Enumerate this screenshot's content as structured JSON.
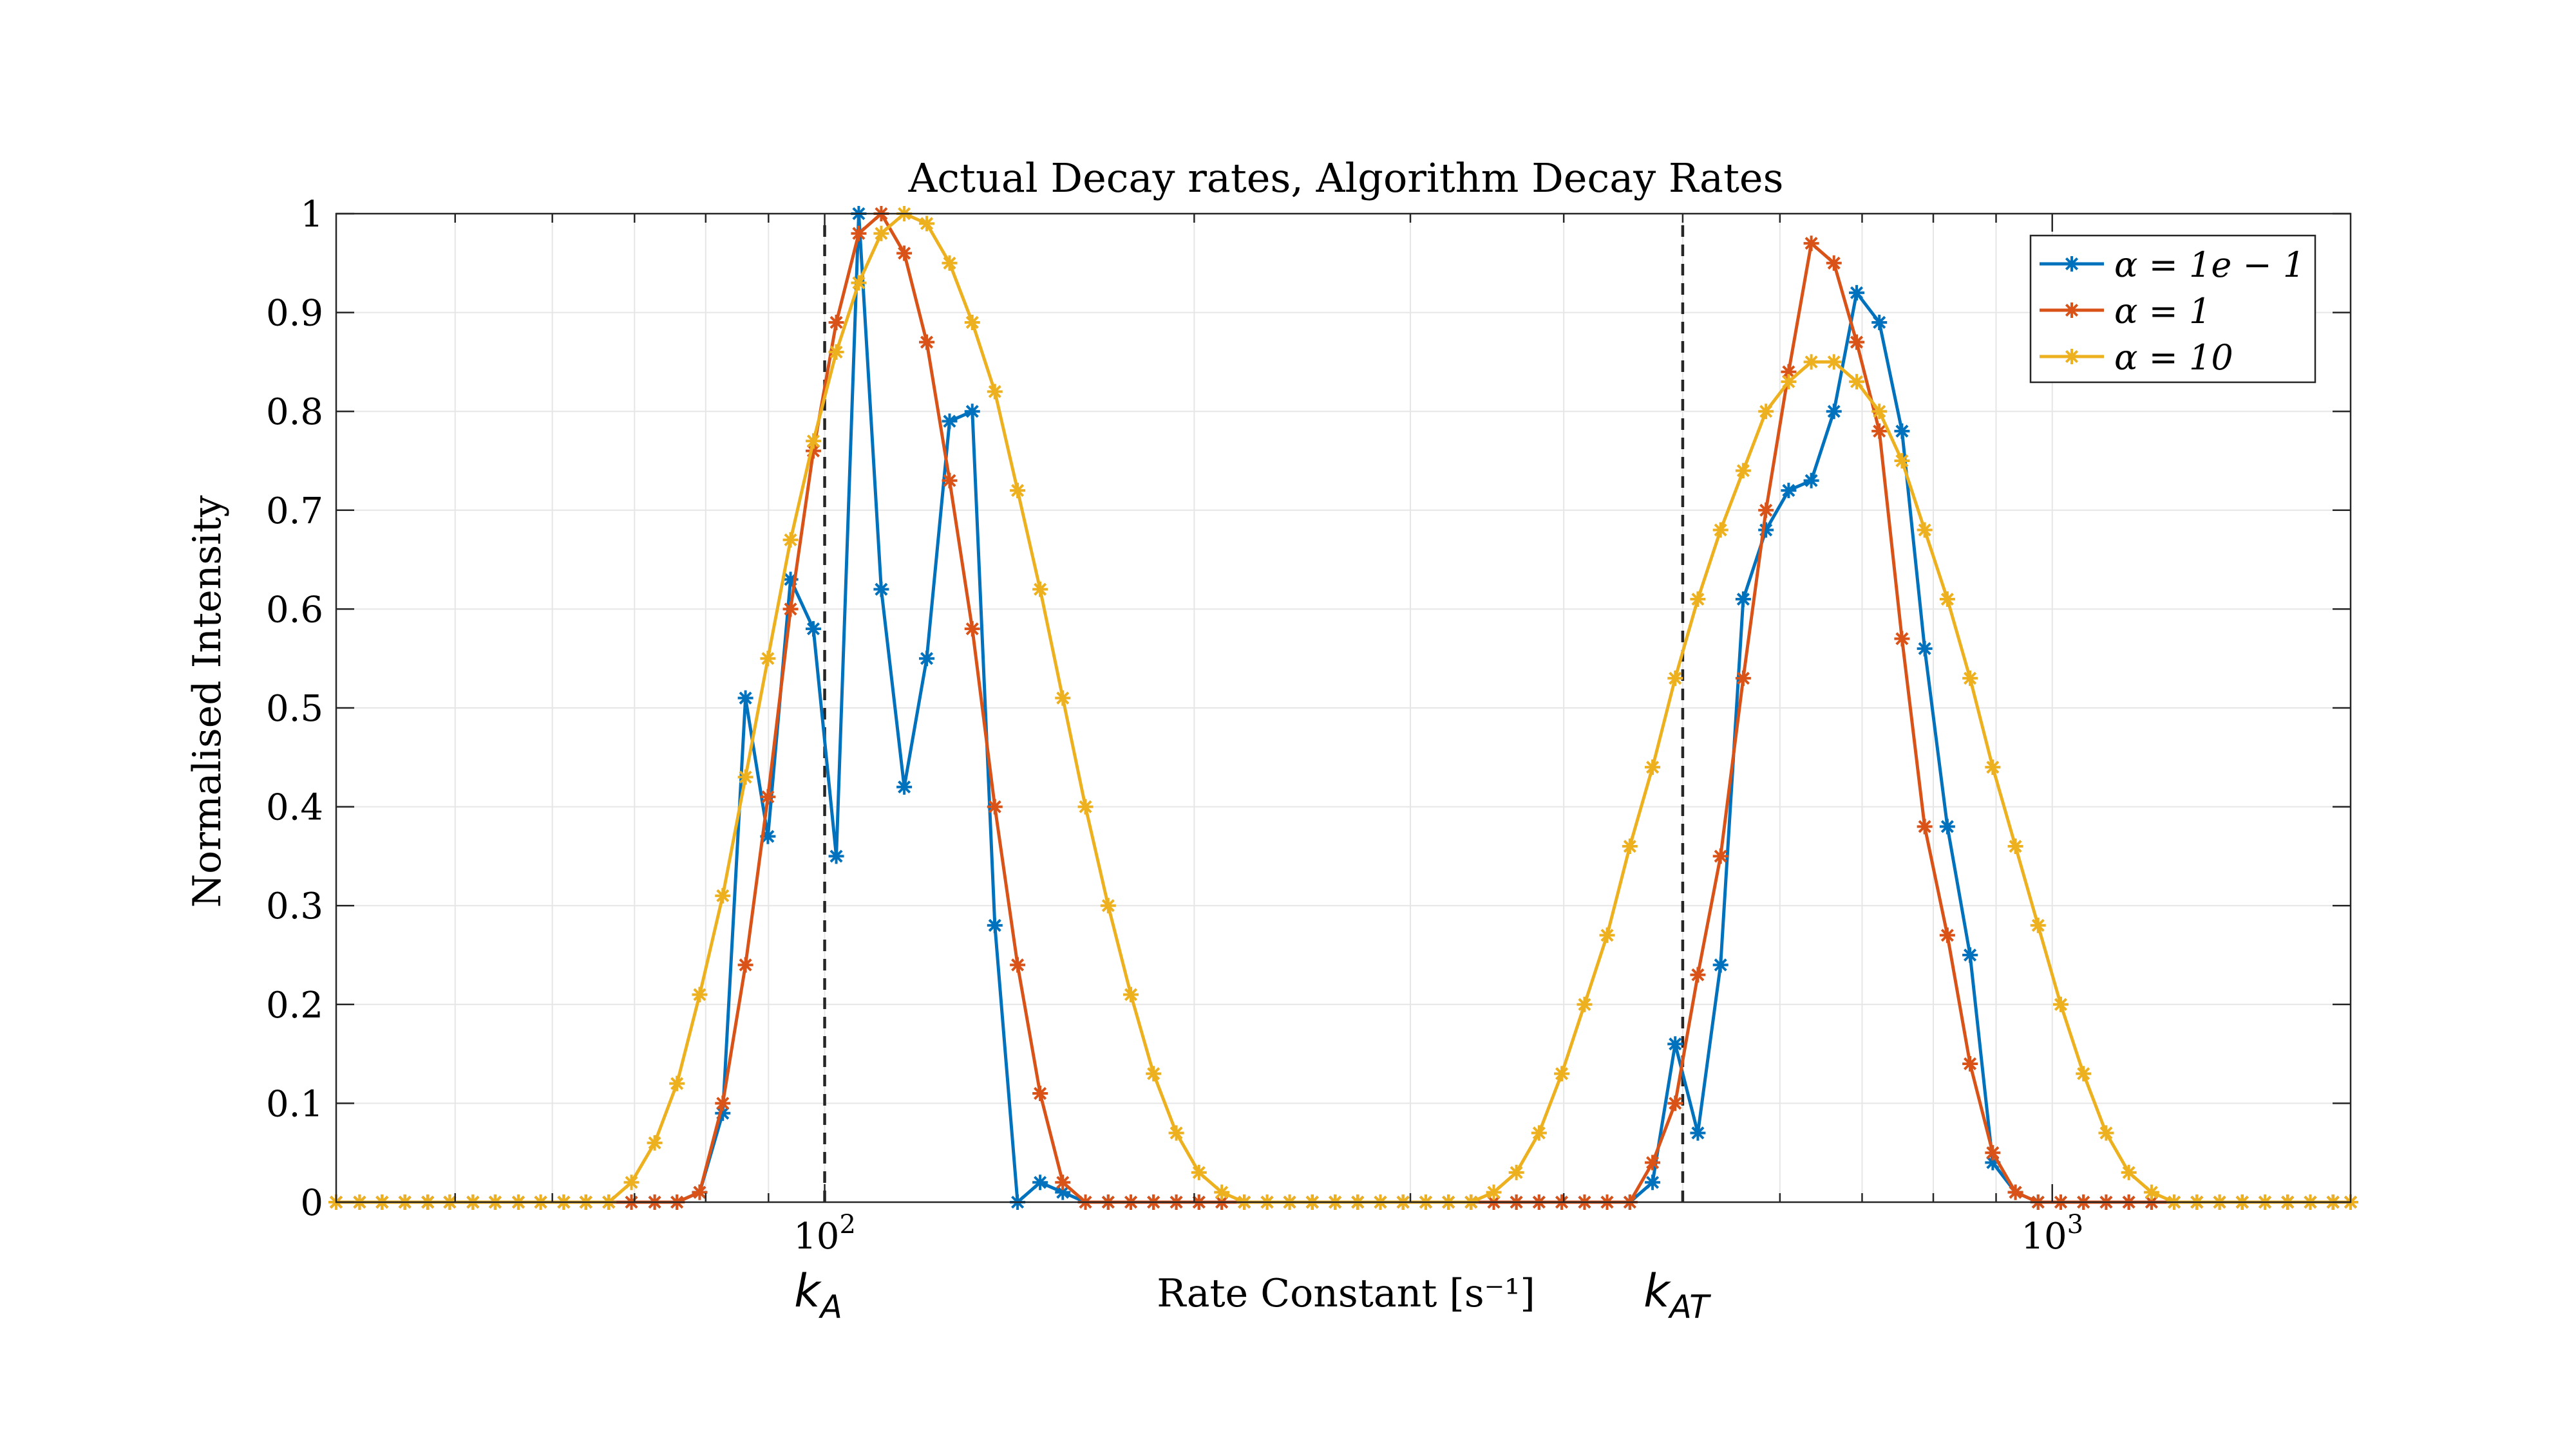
{
  "chart_data": {
    "type": "line",
    "title": "Actual Decay rates, Algorithm Decay Rates",
    "xlabel": "Rate Constant [s⁻¹]",
    "ylabel": "Normalised Intensity",
    "x_scale": "log",
    "xlim": [
      40,
      1750
    ],
    "ylim": [
      0,
      1
    ],
    "grid": true,
    "legend_position": "top-right",
    "x_ticks": [
      {
        "value": 100,
        "label": "10",
        "exp": "2"
      },
      {
        "value": 1000,
        "label": "10",
        "exp": "3"
      }
    ],
    "y_ticks": [
      {
        "value": 0,
        "label": "0"
      },
      {
        "value": 0.1,
        "label": "0.1"
      },
      {
        "value": 0.2,
        "label": "0.2"
      },
      {
        "value": 0.3,
        "label": "0.3"
      },
      {
        "value": 0.4,
        "label": "0.4"
      },
      {
        "value": 0.5,
        "label": "0.5"
      },
      {
        "value": 0.6,
        "label": "0.6"
      },
      {
        "value": 0.7,
        "label": "0.7"
      },
      {
        "value": 0.8,
        "label": "0.8"
      },
      {
        "value": 0.9,
        "label": "0.9"
      },
      {
        "value": 1,
        "label": "1"
      }
    ],
    "reference_lines": [
      {
        "x": 100,
        "label": "k",
        "sub": "A"
      },
      {
        "x": 500,
        "label": "k",
        "sub": "AT"
      }
    ],
    "x": [
      40.0,
      41.8,
      43.6,
      45.5,
      47.5,
      49.5,
      51.7,
      53.9,
      56.3,
      58.7,
      61.3,
      63.9,
      66.7,
      69.6,
      72.7,
      75.8,
      79.1,
      82.6,
      86.2,
      89.9,
      93.8,
      97.9,
      102.2,
      106.6,
      111.2,
      116.1,
      121.1,
      126.4,
      131.9,
      137.6,
      143.6,
      149.8,
      156.3,
      163.1,
      170.2,
      177.6,
      185.3,
      193.4,
      201.8,
      210.6,
      219.7,
      229.3,
      239.2,
      249.6,
      260.5,
      271.8,
      283.6,
      295.9,
      308.8,
      322.2,
      336.2,
      350.8,
      366.0,
      381.9,
      398.5,
      415.9,
      433.9,
      452.8,
      472.5,
      493.0,
      514.4,
      536.8,
      560.1,
      584.5,
      609.9,
      636.4,
      664.0,
      692.9,
      723.0,
      754.4,
      787.2,
      821.4,
      857.1,
      894.4,
      933.3,
      973.8,
      1016.1,
      1060.3,
      1106.4,
      1154.5,
      1204.7,
      1257.0,
      1311.7,
      1368.7,
      1428.2,
      1490.3,
      1555.1,
      1622.7,
      1693.2,
      1750.0
    ],
    "series": [
      {
        "name": "α = 1e − 1",
        "color": "#0072BD",
        "values": [
          0,
          0,
          0,
          0,
          0,
          0,
          0,
          0,
          0,
          0,
          0,
          0,
          0,
          0,
          0,
          0,
          0.01,
          0.09,
          0.51,
          0.37,
          0.63,
          0.58,
          0.35,
          1.0,
          0.62,
          0.42,
          0.55,
          0.79,
          0.8,
          0.28,
          0,
          0.02,
          0.01,
          0,
          0,
          0,
          0,
          0,
          0,
          0,
          0,
          0,
          0,
          0,
          0,
          0,
          0,
          0,
          0,
          0,
          0,
          0,
          0,
          0,
          0,
          0,
          0,
          0,
          0.02,
          0.16,
          0.07,
          0.24,
          0.61,
          0.68,
          0.72,
          0.73,
          0.8,
          0.92,
          0.89,
          0.78,
          0.56,
          0.38,
          0.25,
          0.04,
          0.01,
          0,
          0,
          0,
          0,
          0,
          0,
          0,
          0,
          0,
          0,
          0,
          0,
          0,
          0,
          0
        ]
      },
      {
        "name": "α = 1",
        "color": "#D95319",
        "values": [
          0,
          0,
          0,
          0,
          0,
          0,
          0,
          0,
          0,
          0,
          0,
          0,
          0,
          0,
          0,
          0,
          0.01,
          0.1,
          0.24,
          0.41,
          0.6,
          0.76,
          0.89,
          0.98,
          1.0,
          0.96,
          0.87,
          0.73,
          0.58,
          0.4,
          0.24,
          0.11,
          0.02,
          0,
          0,
          0,
          0,
          0,
          0,
          0,
          0,
          0,
          0,
          0,
          0,
          0,
          0,
          0,
          0,
          0,
          0,
          0,
          0,
          0,
          0,
          0,
          0,
          0,
          0.04,
          0.1,
          0.23,
          0.35,
          0.53,
          0.7,
          0.84,
          0.97,
          0.95,
          0.87,
          0.78,
          0.57,
          0.38,
          0.27,
          0.14,
          0.05,
          0.01,
          0,
          0,
          0,
          0,
          0,
          0,
          0,
          0,
          0,
          0,
          0,
          0,
          0,
          0,
          0
        ]
      },
      {
        "name": "α = 10",
        "color": "#EDB120",
        "values": [
          0,
          0,
          0,
          0,
          0,
          0,
          0,
          0,
          0,
          0,
          0,
          0,
          0,
          0.02,
          0.06,
          0.12,
          0.21,
          0.31,
          0.43,
          0.55,
          0.67,
          0.77,
          0.86,
          0.93,
          0.98,
          1.0,
          0.99,
          0.95,
          0.89,
          0.82,
          0.72,
          0.62,
          0.51,
          0.4,
          0.3,
          0.21,
          0.13,
          0.07,
          0.03,
          0.01,
          0,
          0,
          0,
          0,
          0,
          0,
          0,
          0,
          0,
          0,
          0,
          0.01,
          0.03,
          0.07,
          0.13,
          0.2,
          0.27,
          0.36,
          0.44,
          0.53,
          0.61,
          0.68,
          0.74,
          0.8,
          0.83,
          0.85,
          0.85,
          0.83,
          0.8,
          0.75,
          0.68,
          0.61,
          0.53,
          0.44,
          0.36,
          0.28,
          0.2,
          0.13,
          0.07,
          0.03,
          0.01,
          0,
          0,
          0,
          0,
          0,
          0,
          0,
          0,
          0
        ]
      }
    ]
  }
}
